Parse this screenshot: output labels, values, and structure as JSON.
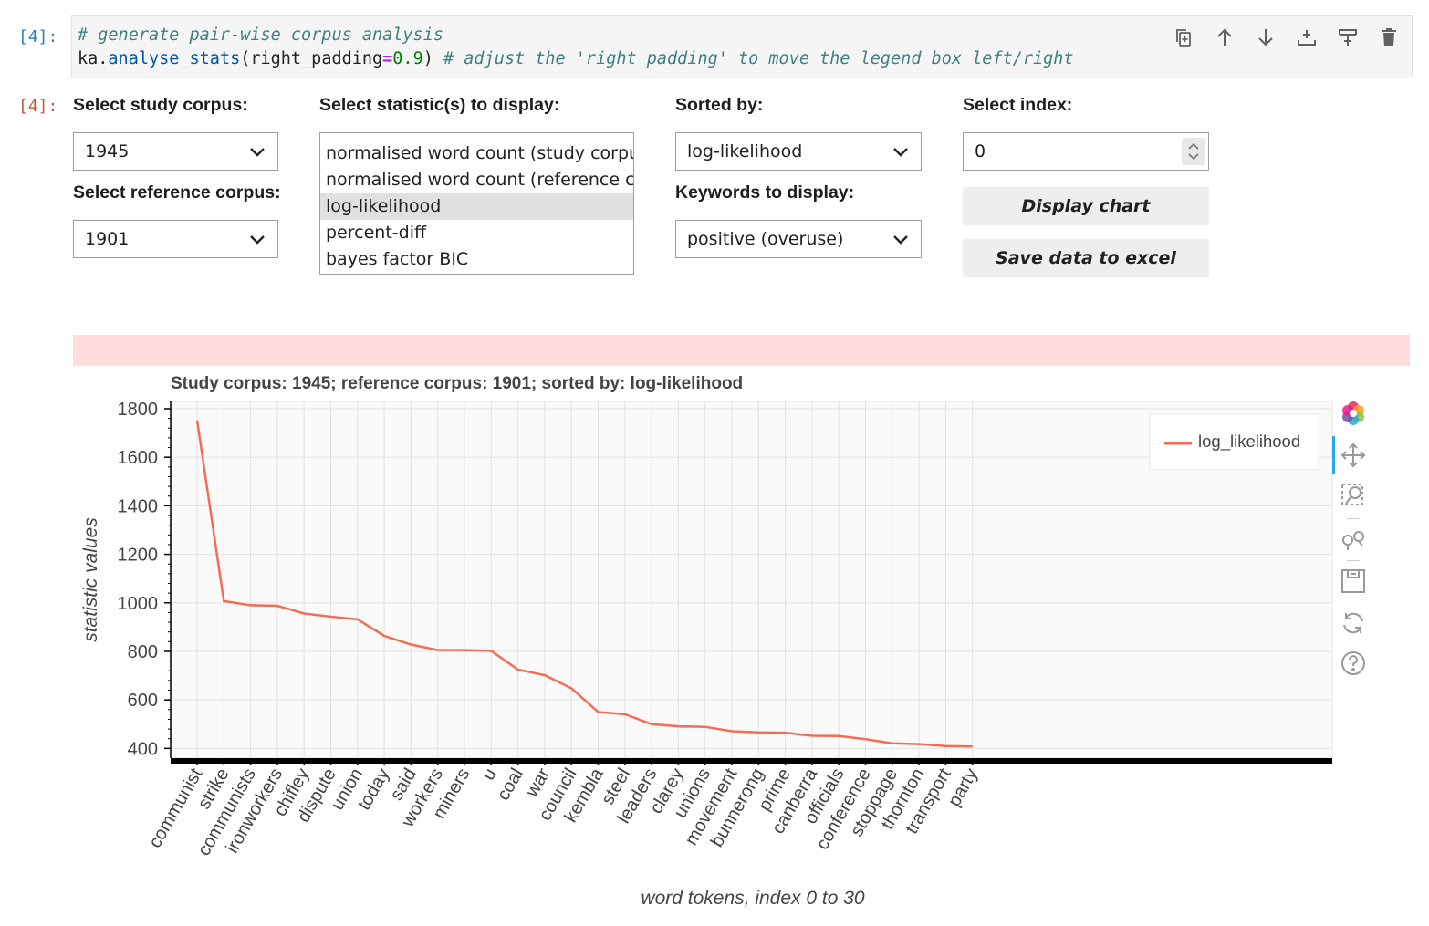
{
  "cell": {
    "in_prompt": "[4]:",
    "out_prompt": "[4]:",
    "code_line1_comment": "# generate pair-wise corpus analysis",
    "code_line2": {
      "obj": "ka",
      "dot": ".",
      "func": "analyse_stats",
      "open": "(",
      "param": "right_padding",
      "eq": "=",
      "value": "0.9",
      "close": ") ",
      "comment": "# adjust the 'right_padding' to move the legend box left/right"
    },
    "toolbar": [
      "duplicate-cell-icon",
      "move-up-icon",
      "move-down-icon",
      "insert-below-icon",
      "insert-above-icon",
      "delete-icon"
    ]
  },
  "widgets": {
    "study_corpus_label": "Select study corpus:",
    "study_corpus_value": "1945",
    "reference_corpus_label": "Select reference corpus:",
    "reference_corpus_value": "1901",
    "statistics_label": "Select statistic(s) to display:",
    "statistics_options": [
      "normalised word count (study corpus)",
      "normalised word count (reference corpus)",
      "log-likelihood",
      "percent-diff",
      "bayes factor BIC"
    ],
    "statistics_selected": "log-likelihood",
    "sorted_by_label": "Sorted by:",
    "sorted_by_value": "log-likelihood",
    "keywords_label": "Keywords to display:",
    "keywords_value": "positive (overuse)",
    "index_label": "Select index:",
    "index_value": "0",
    "display_chart_button": "Display chart",
    "save_excel_button": "Save data to excel"
  },
  "chart_data": {
    "type": "line",
    "title": "Study corpus: 1945; reference corpus: 1901; sorted by: log-likelihood",
    "xlabel": "word tokens, index 0 to 30",
    "ylabel": "statistic values",
    "ylim": [
      360,
      1830
    ],
    "yticks": [
      400,
      600,
      800,
      1000,
      1200,
      1400,
      1600,
      1800
    ],
    "grid": true,
    "legend_position": "top-right",
    "line_color": "#f46d52",
    "categories": [
      "communist",
      "strike",
      "communists",
      "ironworkers",
      "chifley",
      "dispute",
      "union",
      "today",
      "said",
      "workers",
      "miners",
      "u",
      "coal",
      "war",
      "council",
      "kembla",
      "steel",
      "leaders",
      "clarey",
      "unions",
      "movement",
      "bunnerong",
      "prime",
      "canberra",
      "officials",
      "conference",
      "stoppage",
      "thornton",
      "transport",
      "party"
    ],
    "series": [
      {
        "name": "log_likelihood",
        "values": [
          1752,
          1007,
          990,
          988,
          956,
          943,
          932,
          864,
          828,
          805,
          805,
          802,
          725,
          702,
          648,
          550,
          541,
          500,
          491,
          489,
          471,
          466,
          465,
          452,
          451,
          438,
          421,
          418,
          410,
          408
        ]
      }
    ]
  }
}
